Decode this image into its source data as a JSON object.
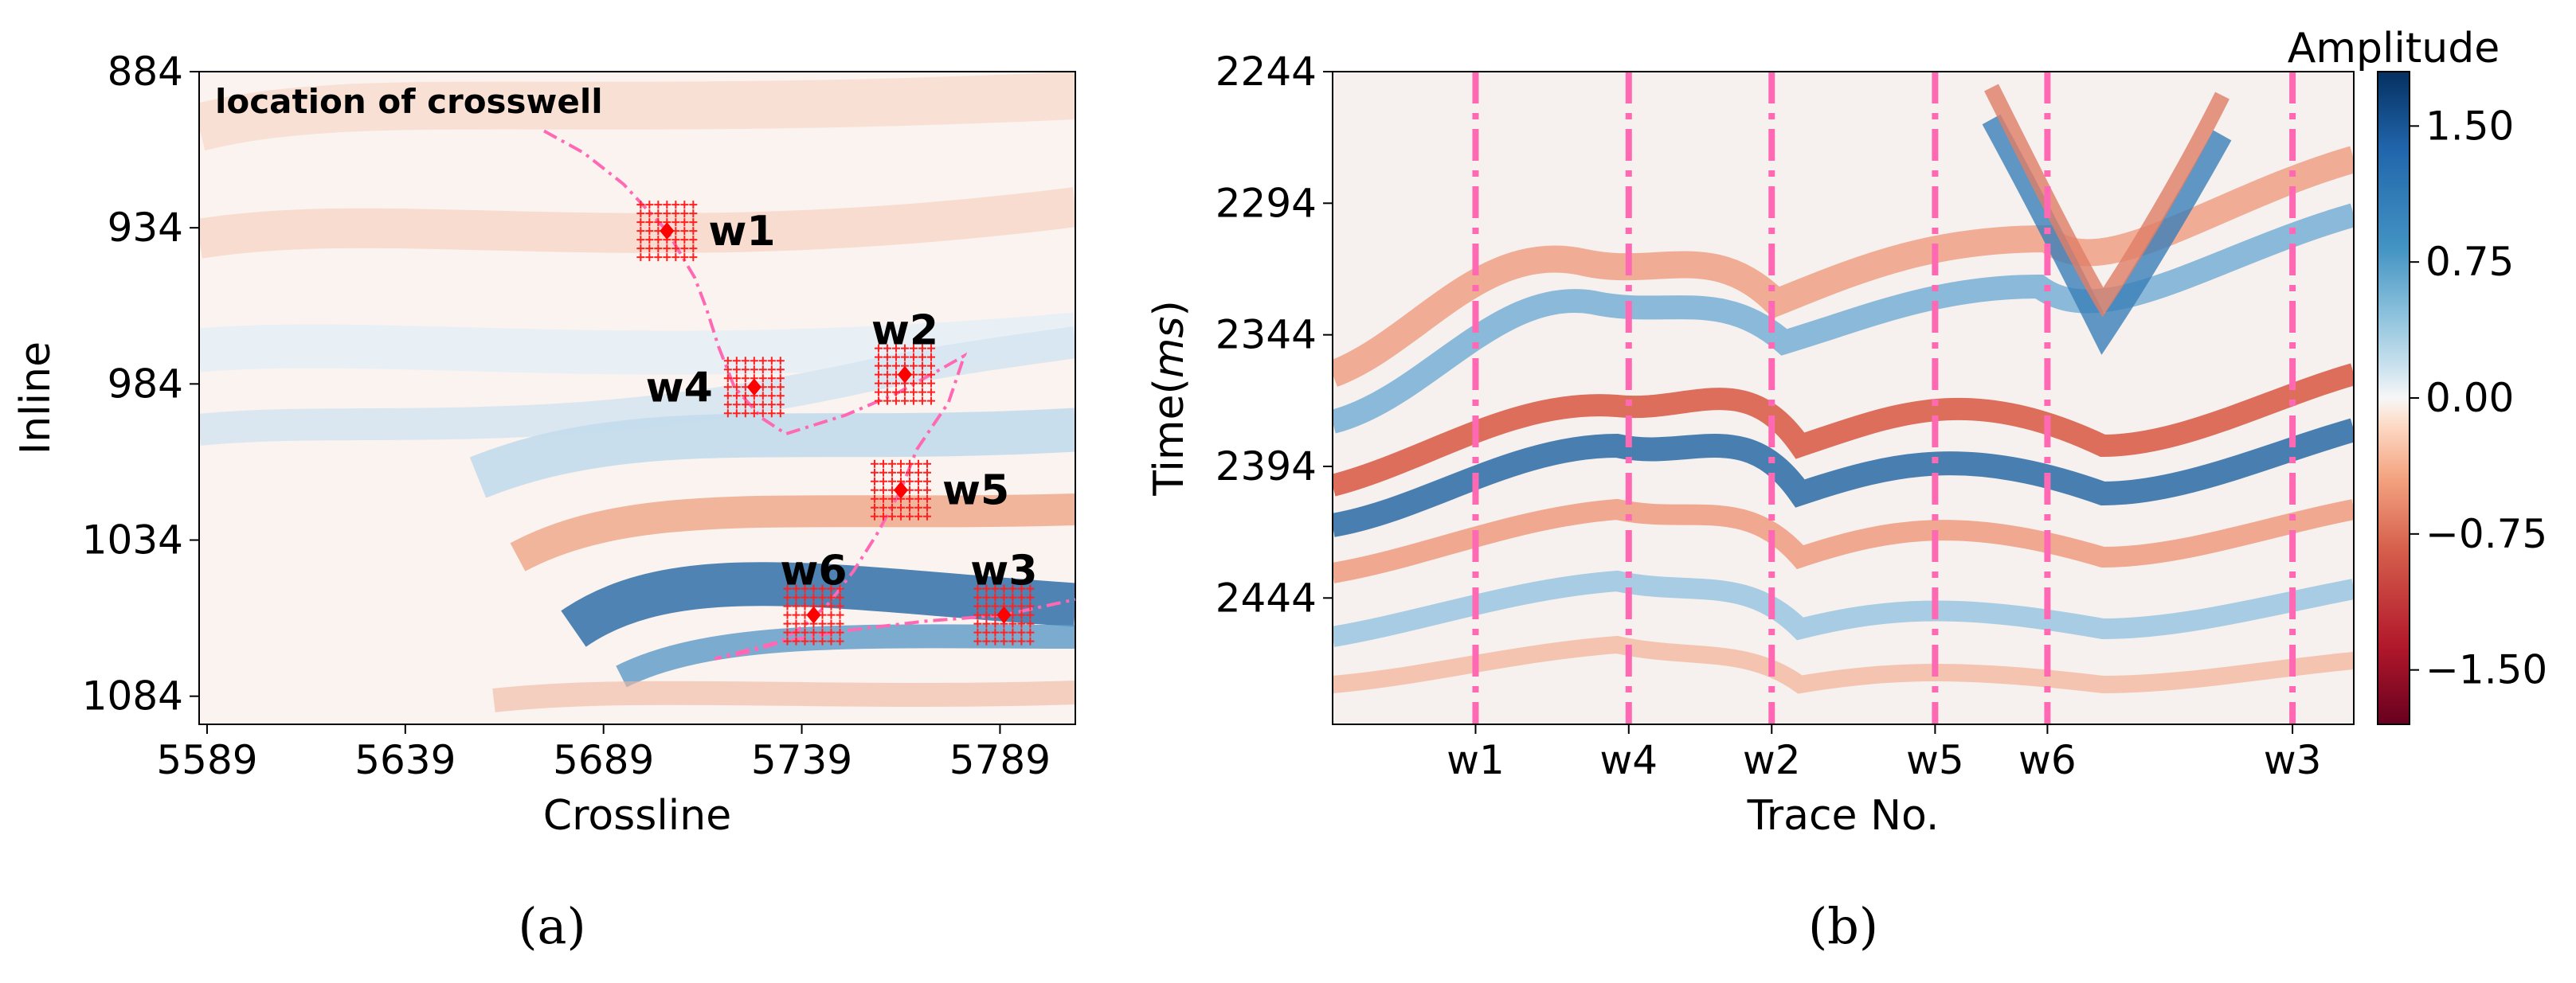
{
  "chart_data": [
    {
      "type": "heatmap",
      "panel": "(a)",
      "caption": "(a)",
      "title": "",
      "xlabel": "Crossline",
      "ylabel": "Inline",
      "xlim": [
        5587,
        5808
      ],
      "ylim": [
        1093,
        884
      ],
      "x_ticks": [
        5589,
        5639,
        5689,
        5739,
        5789
      ],
      "y_ticks": [
        884,
        934,
        984,
        1034,
        1084
      ],
      "annotation": "location of crosswell",
      "colormap": "RdBu (red negative, blue positive)",
      "wells": [
        {
          "name": "w1",
          "crossline": 5705,
          "inline": 935
        },
        {
          "name": "w2",
          "crossline": 5765,
          "inline": 981
        },
        {
          "name": "w3",
          "crossline": 5790,
          "inline": 1058
        },
        {
          "name": "w4",
          "crossline": 5727,
          "inline": 985
        },
        {
          "name": "w5",
          "crossline": 5764,
          "inline": 1018
        },
        {
          "name": "w6",
          "crossline": 5742,
          "inline": 1058
        }
      ],
      "crosswell_path": [
        [
          5674,
          903
        ],
        [
          5684,
          910
        ],
        [
          5694,
          920
        ],
        [
          5705,
          935
        ],
        [
          5712,
          950
        ],
        [
          5715,
          960
        ],
        [
          5718,
          972
        ],
        [
          5722,
          985
        ],
        [
          5729,
          995
        ],
        [
          5735,
          1000
        ],
        [
          5750,
          994
        ],
        [
          5763,
          987
        ],
        [
          5773,
          980
        ],
        [
          5780,
          975
        ],
        [
          5776,
          990
        ],
        [
          5768,
          1005
        ],
        [
          5764,
          1018
        ],
        [
          5758,
          1032
        ],
        [
          5752,
          1044
        ],
        [
          5746,
          1054
        ],
        [
          5740,
          1061
        ],
        [
          5733,
          1067
        ],
        [
          5725,
          1070
        ],
        [
          5717,
          1072
        ],
        [
          5732,
          1067
        ],
        [
          5750,
          1063
        ],
        [
          5770,
          1060
        ],
        [
          5790,
          1058
        ],
        [
          5808,
          1053
        ]
      ]
    },
    {
      "type": "heatmap",
      "panel": "(b)",
      "caption": "(b)",
      "title": "",
      "xlabel": "Trace No.",
      "ylabel": "Time(ms)",
      "ylabel_main": "Time(",
      "ylabel_unit": "ms",
      "ylabel_close": ")",
      "ylim": [
        2244,
        2492
      ],
      "y_ticks": [
        2244,
        2294,
        2344,
        2394,
        2444
      ],
      "trace_range": [
        0,
        100
      ],
      "well_traces": [
        {
          "name": "w1",
          "trace": 14
        },
        {
          "name": "w4",
          "trace": 29
        },
        {
          "name": "w2",
          "trace": 43
        },
        {
          "name": "w5",
          "trace": 59
        },
        {
          "name": "w6",
          "trace": 70
        },
        {
          "name": "w3",
          "trace": 94
        }
      ],
      "colorbar": {
        "label": "Amplitude",
        "range": [
          -1.8,
          1.8
        ],
        "ticks": [
          1.5,
          0.75,
          0.0,
          -0.75,
          -1.5
        ],
        "tick_labels": [
          "1.50",
          "0.75",
          "0.00",
          "−0.75",
          "−1.50"
        ]
      }
    }
  ],
  "colors": {
    "well_line": "#ff69b4",
    "well_marker": "#ff0000",
    "grid_mark": "#ff2020"
  }
}
